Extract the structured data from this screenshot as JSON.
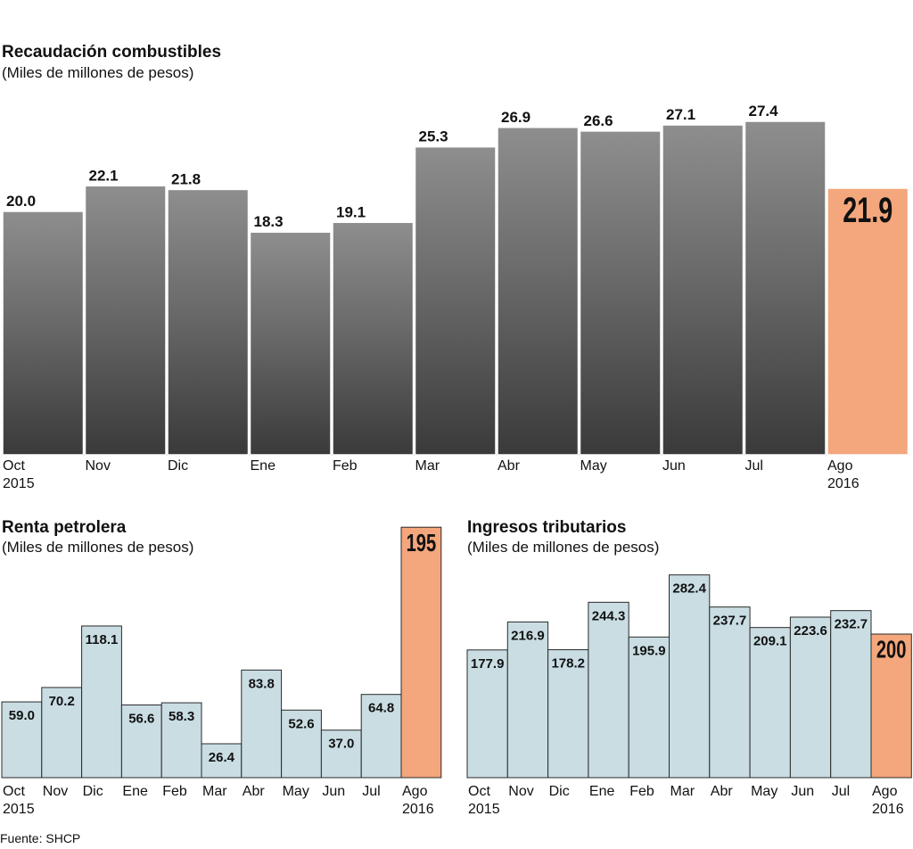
{
  "chart_data": [
    {
      "type": "bar",
      "title": "Recaudación combustibles",
      "subtitle": "(Miles de millones de pesos)",
      "categories": [
        "Oct\n2015",
        "Nov",
        "Dic",
        "Ene",
        "Feb",
        "Mar",
        "Abr",
        "May",
        "Jun",
        "Jul",
        "Ago\n2016"
      ],
      "values": [
        20.0,
        22.1,
        21.8,
        18.3,
        19.1,
        25.3,
        26.9,
        26.6,
        27.1,
        27.4,
        21.9
      ],
      "value_labels": [
        "20.0",
        "22.1",
        "21.8",
        "18.3",
        "19.1",
        "25.3",
        "26.9",
        "26.6",
        "27.1",
        "27.4",
        "21.9"
      ],
      "highlight_index": 10,
      "ylim": [
        0,
        28
      ],
      "xlabel": "",
      "ylabel": ""
    },
    {
      "type": "bar",
      "title": "Renta petrolera",
      "subtitle": "(Miles de millones de pesos)",
      "categories": [
        "Oct\n2015",
        "Nov",
        "Dic",
        "Ene",
        "Feb",
        "Mar",
        "Abr",
        "May",
        "Jun",
        "Jul",
        "Ago\n2016"
      ],
      "values": [
        59.0,
        70.2,
        118.1,
        56.6,
        58.3,
        26.4,
        83.8,
        52.6,
        37.0,
        64.8,
        195
      ],
      "value_labels": [
        "59.0",
        "70.2",
        "118.1",
        "56.6",
        "58.3",
        "26.4",
        "83.8",
        "52.6",
        "37.0",
        "64.8",
        "195"
      ],
      "highlight_index": 10,
      "ylim": [
        0,
        200
      ],
      "xlabel": "",
      "ylabel": ""
    },
    {
      "type": "bar",
      "title": "Ingresos tributarios",
      "subtitle": "(Miles de millones de pesos)",
      "categories": [
        "Oct\n2015",
        "Nov",
        "Dic",
        "Ene",
        "Feb",
        "Mar",
        "Abr",
        "May",
        "Jun",
        "Jul",
        "Ago\n2016"
      ],
      "values": [
        177.9,
        216.9,
        178.2,
        244.3,
        195.9,
        282.4,
        237.7,
        209.1,
        223.6,
        232.7,
        200
      ],
      "value_labels": [
        "177.9",
        "216.9",
        "178.2",
        "244.3",
        "195.9",
        "282.4",
        "237.7",
        "209.1",
        "223.6",
        "232.7",
        "200"
      ],
      "highlight_index": 10,
      "ylim": [
        0,
        300
      ],
      "xlabel": "",
      "ylabel": ""
    }
  ],
  "source": "Fuente: SHCP",
  "colors": {
    "bar": "#c9dde3",
    "bar_dark": "#4a4a4a",
    "highlight": "#f4a67c",
    "stroke": "#111111"
  }
}
